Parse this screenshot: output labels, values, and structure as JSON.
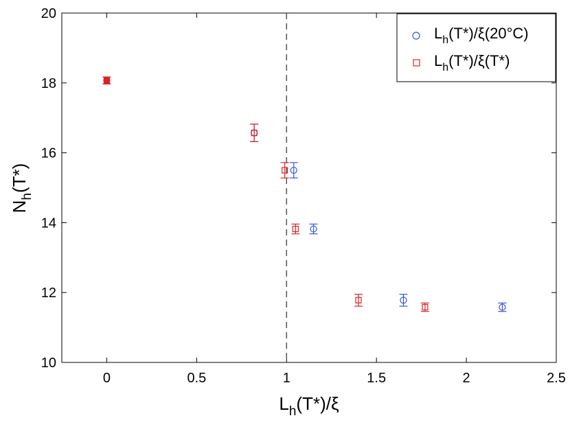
{
  "chart_data": {
    "type": "scatter",
    "xlabel": {
      "main": "L",
      "sub": "h",
      "rest": "(T*)/ξ"
    },
    "ylabel": {
      "main": "N",
      "sub": "h",
      "rest": "(T*)"
    },
    "xlim": [
      -0.25,
      2.5
    ],
    "ylim": [
      10,
      20
    ],
    "xticks": [
      0,
      0.5,
      1,
      1.5,
      2,
      2.5
    ],
    "xtick_labels": [
      "0",
      "0.5",
      "1",
      "1.5",
      "2",
      "2.5"
    ],
    "yticks": [
      10,
      12,
      14,
      16,
      18,
      20
    ],
    "ytick_labels": [
      "10",
      "12",
      "14",
      "16",
      "18",
      "20"
    ],
    "grid": false,
    "legend_position": "top-right",
    "reference_line": {
      "x": 1,
      "style": "dashed",
      "color": "#555555"
    },
    "series": [
      {
        "name": {
          "main": "L",
          "sub": "h",
          "rest": "(T*)/ξ(20°C)"
        },
        "marker": "circle",
        "color": "#3355dd",
        "points": [
          {
            "x": 0.0,
            "y": 18.07,
            "err": 0.1
          },
          {
            "x": 0.82,
            "y": 16.57,
            "err": 0.25
          },
          {
            "x": 1.04,
            "y": 15.5,
            "err": 0.22
          },
          {
            "x": 1.15,
            "y": 13.82,
            "err": 0.14
          },
          {
            "x": 1.65,
            "y": 11.78,
            "err": 0.17
          },
          {
            "x": 2.2,
            "y": 11.58,
            "err": 0.12
          }
        ]
      },
      {
        "name": {
          "main": "L",
          "sub": "h",
          "rest": "(T*)/ξ(T*)"
        },
        "marker": "square",
        "color": "#dd2222",
        "points": [
          {
            "x": 0.0,
            "y": 18.07,
            "err": 0.1
          },
          {
            "x": 0.82,
            "y": 16.57,
            "err": 0.25
          },
          {
            "x": 0.99,
            "y": 15.5,
            "err": 0.22
          },
          {
            "x": 1.05,
            "y": 13.82,
            "err": 0.14
          },
          {
            "x": 1.4,
            "y": 11.78,
            "err": 0.17
          },
          {
            "x": 1.77,
            "y": 11.58,
            "err": 0.12
          }
        ]
      }
    ]
  }
}
